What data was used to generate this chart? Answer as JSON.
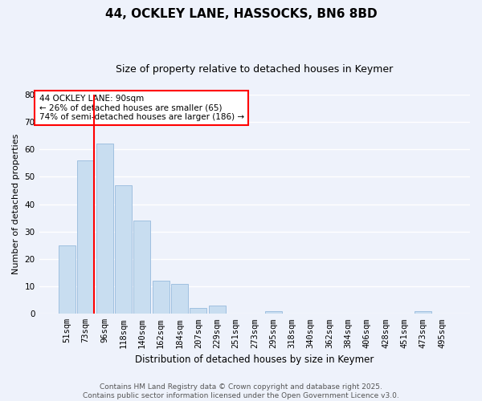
{
  "title": "44, OCKLEY LANE, HASSOCKS, BN6 8BD",
  "subtitle": "Size of property relative to detached houses in Keymer",
  "xlabel": "Distribution of detached houses by size in Keymer",
  "ylabel": "Number of detached properties",
  "bar_labels": [
    "51sqm",
    "73sqm",
    "96sqm",
    "118sqm",
    "140sqm",
    "162sqm",
    "184sqm",
    "207sqm",
    "229sqm",
    "251sqm",
    "273sqm",
    "295sqm",
    "318sqm",
    "340sqm",
    "362sqm",
    "384sqm",
    "406sqm",
    "428sqm",
    "451sqm",
    "473sqm",
    "495sqm"
  ],
  "bar_values": [
    25,
    56,
    62,
    47,
    34,
    12,
    11,
    2,
    3,
    0,
    0,
    1,
    0,
    0,
    0,
    0,
    0,
    0,
    0,
    1,
    0
  ],
  "bar_color": "#c8ddf0",
  "bar_edge_color": "#a0c0e0",
  "vline_x_bar_index": 1,
  "vline_color": "red",
  "annotation_text": "44 OCKLEY LANE: 90sqm\n← 26% of detached houses are smaller (65)\n74% of semi-detached houses are larger (186) →",
  "annotation_box_color": "white",
  "annotation_box_edge": "red",
  "ylim": [
    0,
    80
  ],
  "yticks": [
    0,
    10,
    20,
    30,
    40,
    50,
    60,
    70,
    80
  ],
  "footer_text": "Contains HM Land Registry data © Crown copyright and database right 2025.\nContains public sector information licensed under the Open Government Licence v3.0.",
  "background_color": "#eef2fb",
  "grid_color": "#ffffff",
  "title_fontsize": 11,
  "subtitle_fontsize": 9,
  "xlabel_fontsize": 8.5,
  "ylabel_fontsize": 8,
  "tick_fontsize": 7.5,
  "footer_fontsize": 6.5
}
